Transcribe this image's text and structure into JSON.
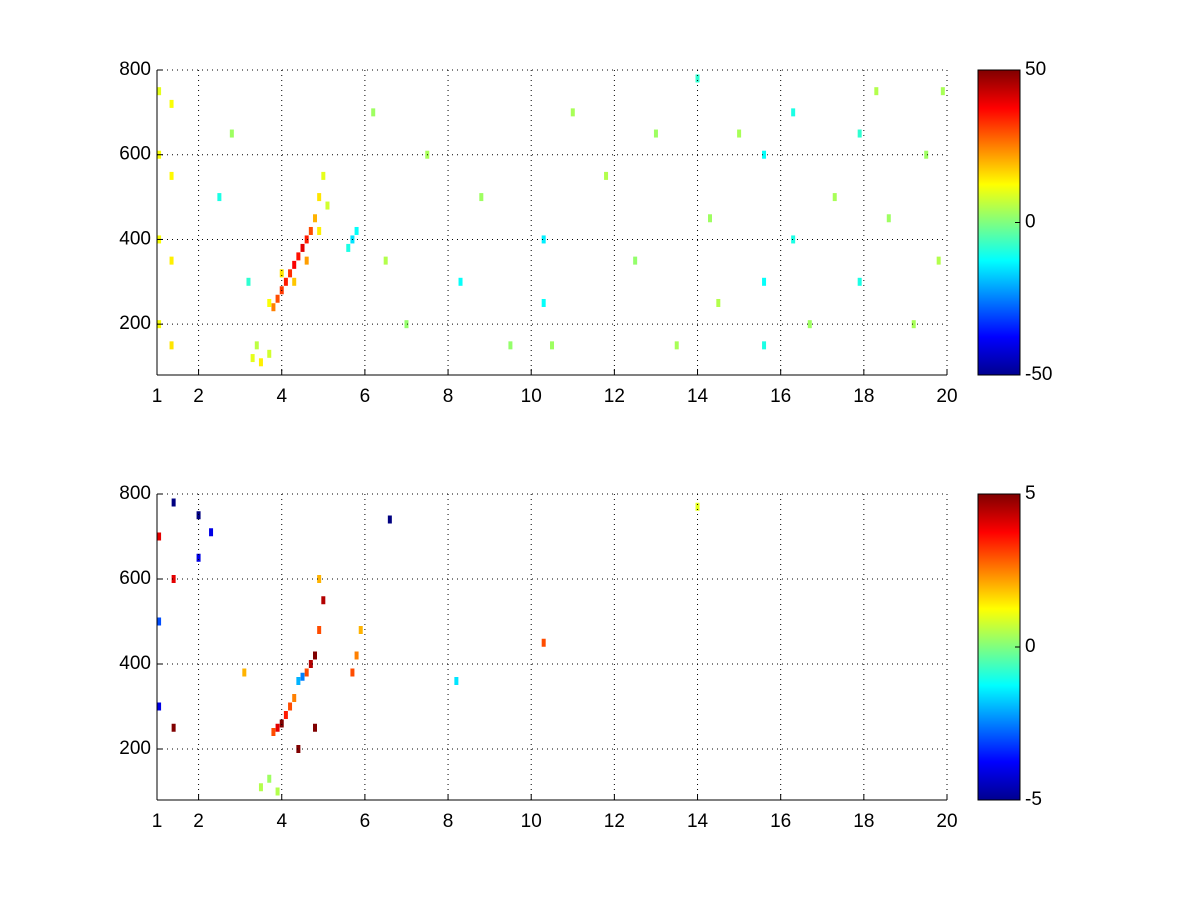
{
  "chart_data": [
    {
      "type": "heatmap",
      "colormap": "jet",
      "grid": true,
      "xlim": [
        1,
        20
      ],
      "xticks": [
        1,
        2,
        4,
        6,
        8,
        10,
        12,
        14,
        16,
        18,
        20
      ],
      "ylim": [
        80,
        800
      ],
      "yticks": [
        200,
        400,
        600,
        800
      ],
      "clim": [
        -50,
        50
      ],
      "cticks": [
        -50,
        0,
        50
      ],
      "x": [
        3.8,
        3.9,
        4.0,
        4.1,
        4.2,
        4.3,
        4.4,
        4.5,
        4.6,
        4.7,
        4.8,
        4.9,
        5.0,
        3.7,
        4.0,
        4.3,
        4.6,
        4.9,
        5.1,
        3.3,
        3.5,
        3.7,
        3.4,
        5.7,
        5.8,
        5.6,
        1.05,
        1.05,
        1.05,
        1.05,
        1.35,
        1.35,
        1.35,
        1.35,
        2.5,
        2.8,
        3.2,
        6.2,
        6.5,
        7,
        7.5,
        8.3,
        8.8,
        9.5,
        10.3,
        10.3,
        10.5,
        11,
        11.8,
        12.5,
        13,
        13.5,
        14,
        14.3,
        14.5,
        15,
        15.6,
        15.6,
        15.6,
        16.3,
        16.3,
        16.7,
        17.3,
        17.9,
        17.9,
        18.3,
        18.6,
        19.2,
        19.5,
        19.8,
        19.9
      ],
      "y": [
        240,
        260,
        280,
        300,
        320,
        340,
        360,
        380,
        400,
        420,
        450,
        500,
        550,
        250,
        320,
        300,
        350,
        420,
        480,
        120,
        110,
        130,
        150,
        400,
        420,
        380,
        200,
        400,
        600,
        750,
        150,
        350,
        550,
        720,
        500,
        650,
        300,
        700,
        350,
        200,
        600,
        300,
        500,
        150,
        400,
        250,
        150,
        700,
        550,
        350,
        650,
        150,
        780,
        450,
        250,
        650,
        300,
        600,
        150,
        400,
        700,
        200,
        500,
        300,
        650,
        750,
        450,
        200,
        600,
        350,
        750
      ],
      "values": [
        25,
        30,
        32,
        35,
        33,
        38,
        36,
        40,
        35,
        30,
        20,
        15,
        10,
        12,
        15,
        18,
        22,
        14,
        8,
        10,
        14,
        8,
        6,
        -15,
        -12,
        -10,
        12,
        12,
        12,
        10,
        15,
        14,
        13,
        12,
        -10,
        3,
        -8,
        3,
        5,
        2,
        4,
        -12,
        3,
        2,
        -14,
        -12,
        3,
        4,
        5,
        2,
        3,
        4,
        -8,
        3,
        5,
        4,
        -12,
        -12,
        -10,
        -10,
        -10,
        3,
        4,
        -10,
        -8,
        5,
        3,
        4,
        3,
        5,
        4
      ]
    },
    {
      "type": "heatmap",
      "colormap": "jet",
      "grid": true,
      "xlim": [
        1,
        20
      ],
      "xticks": [
        1,
        2,
        4,
        6,
        8,
        10,
        12,
        14,
        16,
        18,
        20
      ],
      "ylim": [
        80,
        800
      ],
      "yticks": [
        200,
        400,
        600,
        800
      ],
      "clim": [
        -5,
        5
      ],
      "cticks": [
        -5,
        0,
        5
      ],
      "x": [
        3.8,
        3.9,
        4.0,
        4.1,
        4.2,
        4.3,
        4.4,
        4.5,
        4.6,
        4.7,
        4.8,
        4.9,
        5.0,
        4.9,
        4.4,
        4.8,
        5.7,
        5.8,
        5.9,
        3.5,
        3.7,
        3.9,
        1.05,
        1.05,
        1.05,
        1.4,
        1.4,
        1.4,
        2.0,
        2.0,
        6.6,
        8.2,
        10.3,
        14.0,
        3.1,
        2.3
      ],
      "y": [
        240,
        250,
        260,
        280,
        300,
        320,
        360,
        370,
        380,
        400,
        420,
        480,
        550,
        600,
        200,
        250,
        380,
        420,
        480,
        110,
        130,
        100,
        700,
        500,
        300,
        780,
        600,
        250,
        650,
        750,
        740,
        360,
        450,
        770,
        380,
        710
      ],
      "values": [
        3,
        4,
        5,
        3.5,
        3,
        2.5,
        -2,
        -2.5,
        3,
        4.5,
        5,
        3,
        4.5,
        2,
        5,
        5,
        3,
        2.5,
        2,
        0.5,
        0.3,
        0.5,
        4,
        -3,
        -4,
        -5,
        4,
        5,
        -4,
        -5,
        -5,
        -1.5,
        3,
        1,
        2,
        -4
      ]
    }
  ]
}
